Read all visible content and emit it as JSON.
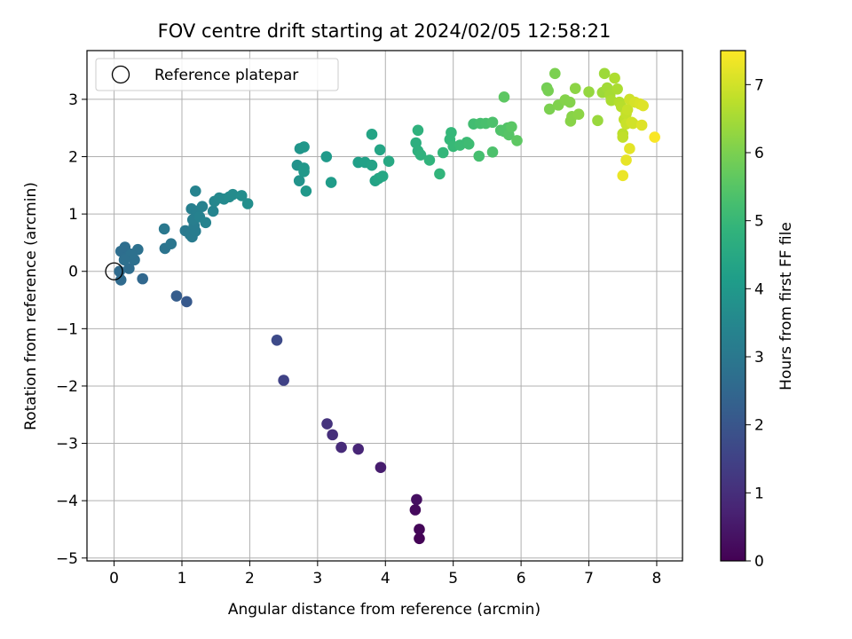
{
  "chart_data": {
    "type": "scatter",
    "title": "FOV centre drift starting at 2024/02/05 12:58:21",
    "xlabel": "Angular distance from reference (arcmin)",
    "ylabel": "Rotation from reference (arcmin)",
    "xlim": [
      -0.4,
      8.38
    ],
    "ylim": [
      -5.05,
      3.85
    ],
    "xticks": [
      0,
      1,
      2,
      3,
      4,
      5,
      6,
      7,
      8
    ],
    "xtick_labels": [
      "0",
      "1",
      "2",
      "3",
      "4",
      "5",
      "6",
      "7",
      "8"
    ],
    "yticks": [
      -5,
      -4,
      -3,
      -2,
      -1,
      0,
      1,
      2,
      3
    ],
    "ytick_labels": [
      "−5",
      "−4",
      "−3",
      "−2",
      "−1",
      "0",
      "1",
      "2",
      "3"
    ],
    "grid": true,
    "legend": {
      "placement": "top-left",
      "entries": [
        {
          "label": "Reference platepar",
          "marker": "open-circle",
          "color": "#000000"
        }
      ]
    },
    "reference_point": {
      "x": 0,
      "y": 0
    },
    "colorbar": {
      "label": "Hours from first FF file",
      "range": [
        0,
        7.5
      ],
      "ticks": [
        0,
        1,
        2,
        3,
        4,
        5,
        6,
        7
      ],
      "colormap": "viridis"
    },
    "points": [
      {
        "x": 4.5,
        "y": -4.66,
        "c": 0.05
      },
      {
        "x": 4.5,
        "y": -4.5,
        "c": 0.1
      },
      {
        "x": 4.44,
        "y": -4.16,
        "c": 0.2
      },
      {
        "x": 4.46,
        "y": -3.98,
        "c": 0.3
      },
      {
        "x": 3.93,
        "y": -3.42,
        "c": 0.6
      },
      {
        "x": 3.6,
        "y": -3.1,
        "c": 0.8
      },
      {
        "x": 3.35,
        "y": -3.07,
        "c": 0.9
      },
      {
        "x": 3.22,
        "y": -2.85,
        "c": 1.0
      },
      {
        "x": 3.14,
        "y": -2.66,
        "c": 1.1
      },
      {
        "x": 2.5,
        "y": -1.9,
        "c": 1.5
      },
      {
        "x": 2.4,
        "y": -1.2,
        "c": 1.7
      },
      {
        "x": 1.07,
        "y": -0.53,
        "c": 2.1
      },
      {
        "x": 0.92,
        "y": -0.43,
        "c": 2.2
      },
      {
        "x": 0.42,
        "y": -0.13,
        "c": 2.5
      },
      {
        "x": 0.1,
        "y": -0.15,
        "c": 2.6
      },
      {
        "x": 0.08,
        "y": 0.0,
        "c": 2.6
      },
      {
        "x": 0.22,
        "y": 0.05,
        "c": 2.65
      },
      {
        "x": 0.1,
        "y": 0.35,
        "c": 2.7
      },
      {
        "x": 0.16,
        "y": 0.42,
        "c": 2.7
      },
      {
        "x": 0.2,
        "y": 0.25,
        "c": 2.7
      },
      {
        "x": 0.3,
        "y": 0.2,
        "c": 2.75
      },
      {
        "x": 0.35,
        "y": 0.38,
        "c": 2.8
      },
      {
        "x": 0.25,
        "y": 0.3,
        "c": 2.8
      },
      {
        "x": 0.15,
        "y": 0.2,
        "c": 2.75
      },
      {
        "x": 0.75,
        "y": 0.4,
        "c": 2.9
      },
      {
        "x": 0.84,
        "y": 0.48,
        "c": 2.95
      },
      {
        "x": 0.74,
        "y": 0.74,
        "c": 3.0
      },
      {
        "x": 1.05,
        "y": 0.71,
        "c": 3.05
      },
      {
        "x": 1.12,
        "y": 0.64,
        "c": 3.1
      },
      {
        "x": 1.15,
        "y": 0.6,
        "c": 3.1
      },
      {
        "x": 1.2,
        "y": 0.7,
        "c": 3.15
      },
      {
        "x": 1.18,
        "y": 0.8,
        "c": 3.15
      },
      {
        "x": 1.16,
        "y": 0.9,
        "c": 3.2
      },
      {
        "x": 1.14,
        "y": 1.09,
        "c": 3.25
      },
      {
        "x": 1.22,
        "y": 1.05,
        "c": 3.25
      },
      {
        "x": 1.26,
        "y": 0.95,
        "c": 3.3
      },
      {
        "x": 1.3,
        "y": 1.13,
        "c": 3.3
      },
      {
        "x": 1.35,
        "y": 0.85,
        "c": 3.35
      },
      {
        "x": 1.2,
        "y": 1.4,
        "c": 3.35
      },
      {
        "x": 1.46,
        "y": 1.05,
        "c": 3.4
      },
      {
        "x": 1.48,
        "y": 1.22,
        "c": 3.45
      },
      {
        "x": 1.55,
        "y": 1.28,
        "c": 3.5
      },
      {
        "x": 1.62,
        "y": 1.26,
        "c": 3.55
      },
      {
        "x": 1.7,
        "y": 1.3,
        "c": 3.6
      },
      {
        "x": 1.75,
        "y": 1.34,
        "c": 3.6
      },
      {
        "x": 1.88,
        "y": 1.32,
        "c": 3.65
      },
      {
        "x": 1.97,
        "y": 1.18,
        "c": 3.7
      },
      {
        "x": 2.7,
        "y": 1.85,
        "c": 3.8
      },
      {
        "x": 2.73,
        "y": 1.58,
        "c": 3.85
      },
      {
        "x": 2.74,
        "y": 2.14,
        "c": 3.9
      },
      {
        "x": 2.8,
        "y": 2.17,
        "c": 3.95
      },
      {
        "x": 2.8,
        "y": 1.8,
        "c": 3.95
      },
      {
        "x": 2.8,
        "y": 1.74,
        "c": 4.0
      },
      {
        "x": 2.83,
        "y": 1.4,
        "c": 4.0
      },
      {
        "x": 3.13,
        "y": 2.0,
        "c": 4.05
      },
      {
        "x": 3.2,
        "y": 1.55,
        "c": 4.1
      },
      {
        "x": 3.6,
        "y": 1.9,
        "c": 4.2
      },
      {
        "x": 3.7,
        "y": 1.9,
        "c": 4.25
      },
      {
        "x": 3.8,
        "y": 1.85,
        "c": 4.3
      },
      {
        "x": 3.85,
        "y": 1.58,
        "c": 4.3
      },
      {
        "x": 3.8,
        "y": 2.39,
        "c": 4.35
      },
      {
        "x": 3.92,
        "y": 2.12,
        "c": 4.4
      },
      {
        "x": 3.9,
        "y": 1.62,
        "c": 4.4
      },
      {
        "x": 3.96,
        "y": 1.66,
        "c": 4.45
      },
      {
        "x": 4.05,
        "y": 1.92,
        "c": 4.5
      },
      {
        "x": 4.45,
        "y": 2.24,
        "c": 4.7
      },
      {
        "x": 4.48,
        "y": 2.1,
        "c": 4.75
      },
      {
        "x": 4.52,
        "y": 2.03,
        "c": 4.8
      },
      {
        "x": 4.48,
        "y": 2.46,
        "c": 4.8
      },
      {
        "x": 4.65,
        "y": 1.94,
        "c": 4.85
      },
      {
        "x": 4.8,
        "y": 1.7,
        "c": 4.9
      },
      {
        "x": 4.85,
        "y": 2.07,
        "c": 4.95
      },
      {
        "x": 4.95,
        "y": 2.3,
        "c": 5.0
      },
      {
        "x": 4.97,
        "y": 2.42,
        "c": 5.0
      },
      {
        "x": 5.0,
        "y": 2.18,
        "c": 5.05
      },
      {
        "x": 5.1,
        "y": 2.2,
        "c": 5.1
      },
      {
        "x": 5.2,
        "y": 2.25,
        "c": 5.1
      },
      {
        "x": 5.23,
        "y": 2.22,
        "c": 5.15
      },
      {
        "x": 5.3,
        "y": 2.57,
        "c": 5.2
      },
      {
        "x": 5.4,
        "y": 2.58,
        "c": 5.25
      },
      {
        "x": 5.38,
        "y": 2.01,
        "c": 5.25
      },
      {
        "x": 5.48,
        "y": 2.58,
        "c": 5.3
      },
      {
        "x": 5.58,
        "y": 2.6,
        "c": 5.35
      },
      {
        "x": 5.58,
        "y": 2.08,
        "c": 5.35
      },
      {
        "x": 5.7,
        "y": 2.46,
        "c": 5.4
      },
      {
        "x": 5.75,
        "y": 2.44,
        "c": 5.45
      },
      {
        "x": 5.8,
        "y": 2.5,
        "c": 5.45
      },
      {
        "x": 5.82,
        "y": 2.38,
        "c": 5.5
      },
      {
        "x": 5.86,
        "y": 2.52,
        "c": 5.55
      },
      {
        "x": 5.94,
        "y": 2.28,
        "c": 5.6
      },
      {
        "x": 5.75,
        "y": 3.04,
        "c": 5.6
      },
      {
        "x": 6.38,
        "y": 3.2,
        "c": 5.9
      },
      {
        "x": 6.4,
        "y": 3.15,
        "c": 5.95
      },
      {
        "x": 6.42,
        "y": 2.83,
        "c": 6.0
      },
      {
        "x": 6.5,
        "y": 3.45,
        "c": 6.0
      },
      {
        "x": 6.55,
        "y": 2.9,
        "c": 6.05
      },
      {
        "x": 6.65,
        "y": 2.99,
        "c": 6.1
      },
      {
        "x": 6.72,
        "y": 2.95,
        "c": 6.1
      },
      {
        "x": 6.73,
        "y": 2.62,
        "c": 6.15
      },
      {
        "x": 6.75,
        "y": 2.7,
        "c": 6.15
      },
      {
        "x": 6.8,
        "y": 3.19,
        "c": 6.2
      },
      {
        "x": 6.85,
        "y": 2.74,
        "c": 6.2
      },
      {
        "x": 7.0,
        "y": 3.13,
        "c": 6.3
      },
      {
        "x": 7.13,
        "y": 2.63,
        "c": 6.35
      },
      {
        "x": 7.2,
        "y": 3.12,
        "c": 6.4
      },
      {
        "x": 7.23,
        "y": 3.45,
        "c": 6.4
      },
      {
        "x": 7.27,
        "y": 3.2,
        "c": 6.45
      },
      {
        "x": 7.31,
        "y": 3.08,
        "c": 6.5
      },
      {
        "x": 7.33,
        "y": 2.98,
        "c": 6.55
      },
      {
        "x": 7.42,
        "y": 3.18,
        "c": 6.55
      },
      {
        "x": 7.38,
        "y": 3.37,
        "c": 6.6
      },
      {
        "x": 7.45,
        "y": 2.95,
        "c": 6.65
      },
      {
        "x": 7.48,
        "y": 2.87,
        "c": 6.7
      },
      {
        "x": 7.5,
        "y": 2.4,
        "c": 6.75
      },
      {
        "x": 7.5,
        "y": 2.34,
        "c": 6.8
      },
      {
        "x": 7.52,
        "y": 2.65,
        "c": 6.8
      },
      {
        "x": 7.55,
        "y": 2.75,
        "c": 6.85
      },
      {
        "x": 7.55,
        "y": 2.57,
        "c": 6.9
      },
      {
        "x": 7.57,
        "y": 2.82,
        "c": 6.9
      },
      {
        "x": 7.6,
        "y": 3.0,
        "c": 6.95
      },
      {
        "x": 7.63,
        "y": 2.6,
        "c": 7.0
      },
      {
        "x": 7.65,
        "y": 2.58,
        "c": 7.0
      },
      {
        "x": 7.68,
        "y": 2.95,
        "c": 7.05
      },
      {
        "x": 7.75,
        "y": 2.92,
        "c": 7.1
      },
      {
        "x": 7.8,
        "y": 2.89,
        "c": 7.15
      },
      {
        "x": 7.78,
        "y": 2.55,
        "c": 7.15
      },
      {
        "x": 7.6,
        "y": 2.14,
        "c": 7.2
      },
      {
        "x": 7.55,
        "y": 1.94,
        "c": 7.25
      },
      {
        "x": 7.5,
        "y": 1.67,
        "c": 7.3
      },
      {
        "x": 7.97,
        "y": 2.34,
        "c": 7.45
      }
    ]
  }
}
